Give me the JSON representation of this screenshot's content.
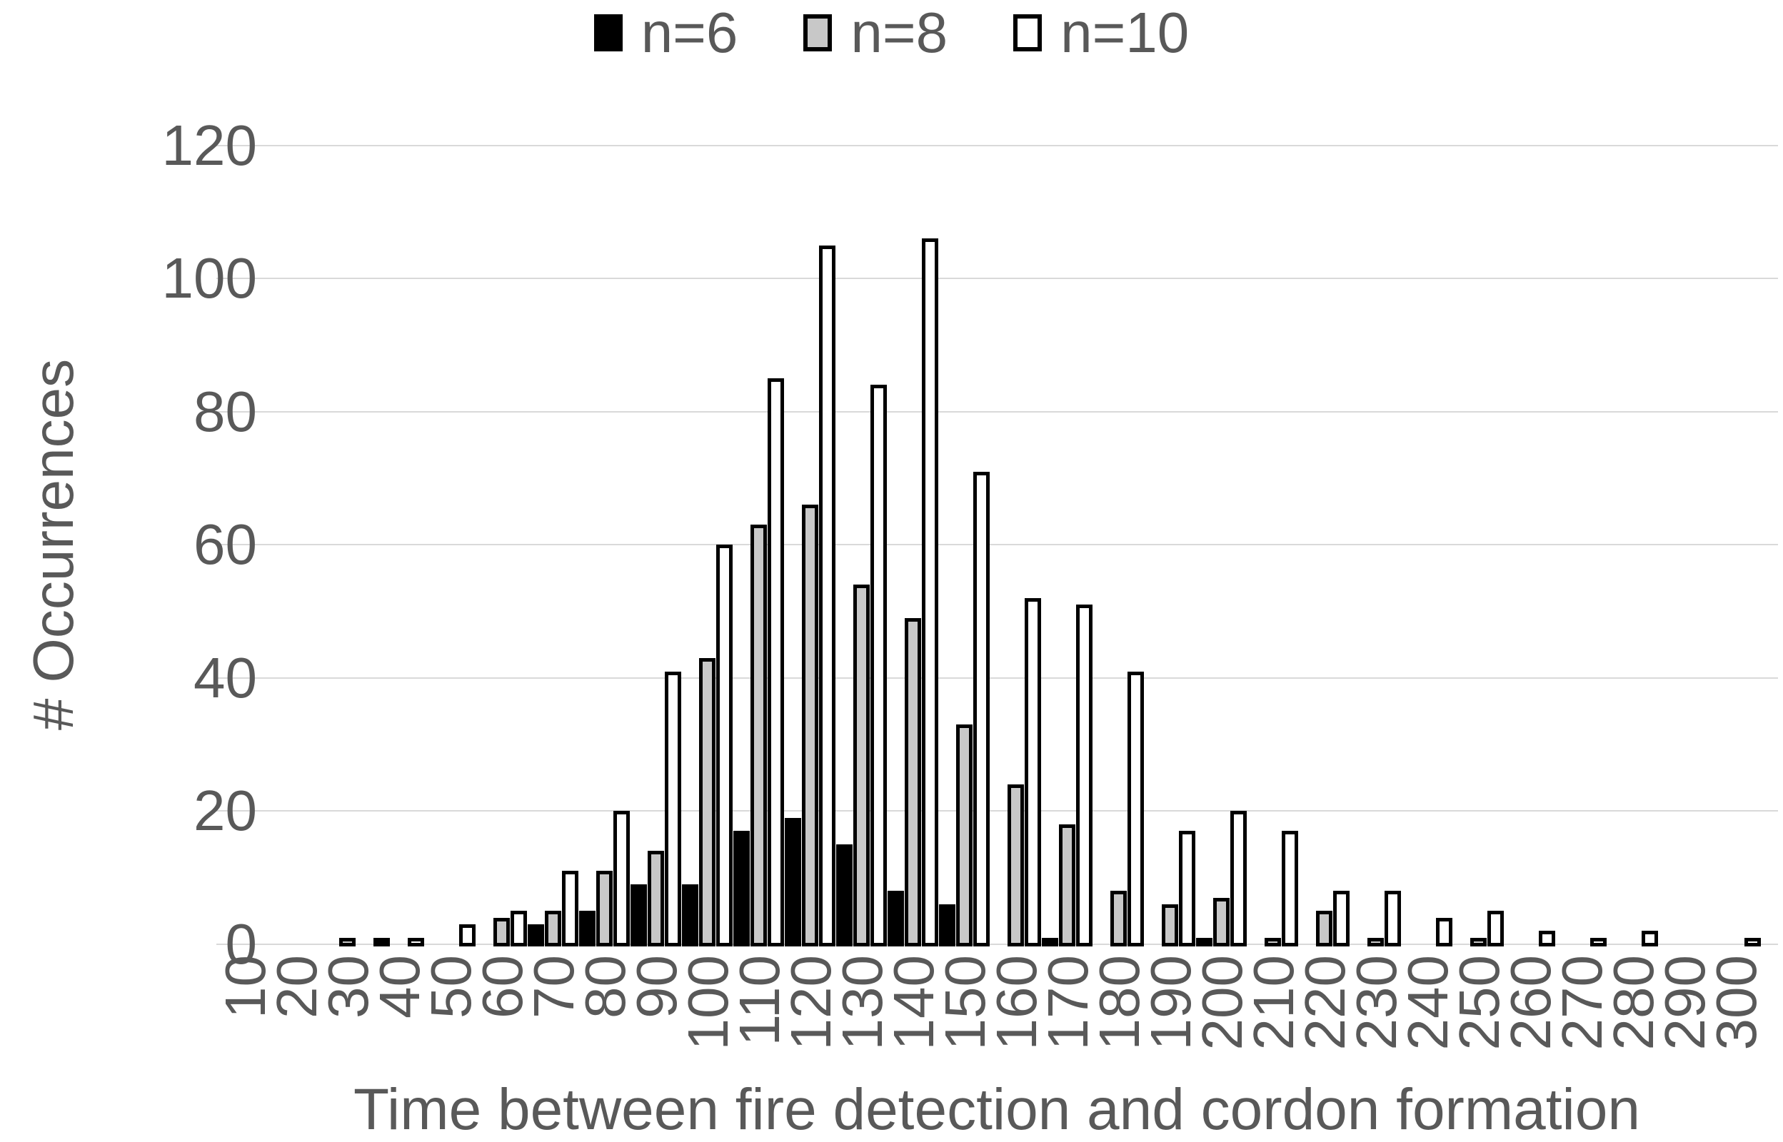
{
  "legend": {
    "items": [
      {
        "label": "n=6",
        "fill": "#000000"
      },
      {
        "label": "n=8",
        "fill": "#c8c8c8"
      },
      {
        "label": "n=10",
        "fill": "#ffffff"
      }
    ]
  },
  "y_axis": {
    "title": "# Occurrences",
    "tick_labels": [
      "0",
      "20",
      "40",
      "60",
      "80",
      "100",
      "120"
    ]
  },
  "x_axis": {
    "title": "Time between fire detection and cordon formation"
  },
  "colors": {
    "n6_fill": "#000000",
    "n8_fill": "#c8c8c8",
    "n10_fill": "#ffffff",
    "bar_border": "#000000",
    "gridline": "#d9d9d9",
    "text": "#595959"
  },
  "chart_data": {
    "type": "bar",
    "title": "",
    "xlabel": "Time between fire detection and cordon formation",
    "ylabel": "# Occurrences",
    "ylim": [
      0,
      120
    ],
    "ytick_step": 20,
    "grid": true,
    "legend_position": "top-center",
    "categories": [
      "10",
      "20",
      "30",
      "40",
      "50",
      "60",
      "70",
      "80",
      "90",
      "100",
      "110",
      "120",
      "130",
      "140",
      "150",
      "160",
      "170",
      "180",
      "190",
      "200",
      "210",
      "220",
      "230",
      "240",
      "250",
      "260",
      "270",
      "280",
      "290",
      "300"
    ],
    "series": [
      {
        "name": "n=6",
        "fill": "#000000",
        "values": [
          0,
          0,
          0,
          1,
          0,
          0,
          3,
          5,
          9,
          9,
          17,
          19,
          15,
          8,
          6,
          0,
          1,
          0,
          0,
          1,
          0,
          0,
          0,
          0,
          0,
          0,
          0,
          0,
          0,
          0
        ]
      },
      {
        "name": "n=8",
        "fill": "#c8c8c8",
        "values": [
          0,
          0,
          1,
          0,
          0,
          4,
          5,
          11,
          14,
          43,
          63,
          66,
          54,
          49,
          33,
          24,
          18,
          8,
          6,
          7,
          1,
          5,
          1,
          0,
          1,
          0,
          0,
          0,
          0,
          0
        ]
      },
      {
        "name": "n=10",
        "fill": "#ffffff",
        "values": [
          0,
          0,
          0,
          1,
          3,
          5,
          11,
          20,
          41,
          60,
          85,
          105,
          84,
          106,
          71,
          52,
          51,
          41,
          17,
          20,
          17,
          8,
          8,
          4,
          5,
          2,
          1,
          2,
          0,
          1
        ]
      }
    ]
  }
}
